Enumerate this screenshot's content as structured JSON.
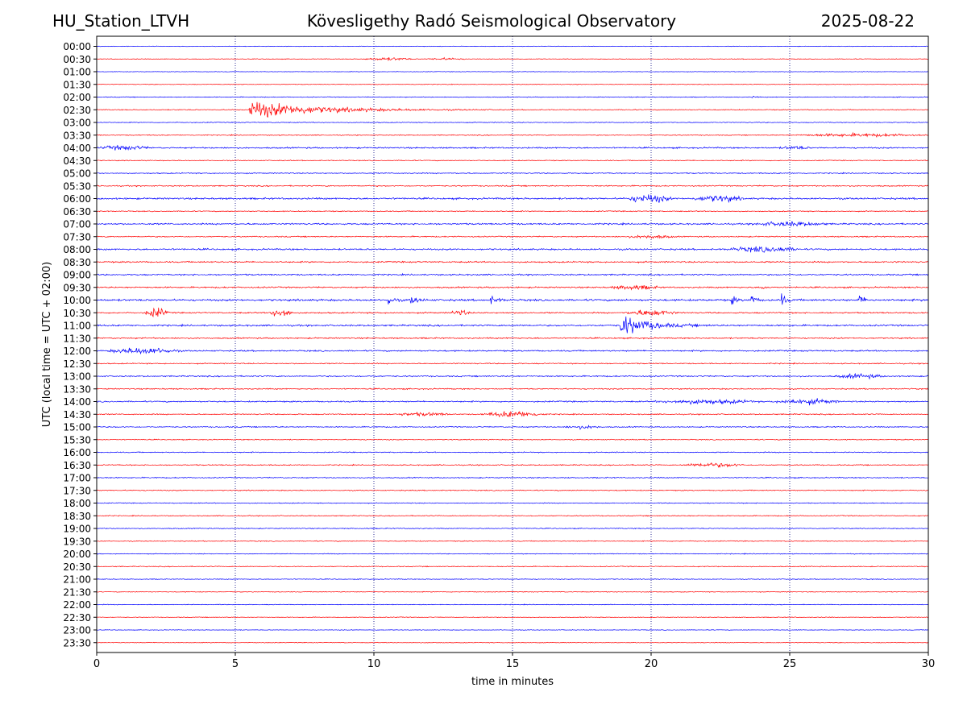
{
  "header": {
    "station": "HU_Station_LTVH",
    "observatory": "Kövesligethy Radó Seismological Observatory",
    "date": "2025-08-22"
  },
  "chart_data": {
    "type": "line",
    "title": "Kövesligethy Radó Seismological Observatory",
    "xlabel": "time in minutes",
    "ylabel": "UTC (local time = UTC + 02:00)",
    "xlim": [
      0,
      30
    ],
    "x_ticks": [
      "0",
      "5",
      "10",
      "15",
      "20",
      "25",
      "30"
    ],
    "grid": "vertical dotted lines every 5 minutes",
    "colors": {
      "even_rows": "#0000ff",
      "odd_rows": "#ff0000",
      "grid": "#000080"
    },
    "rows": [
      "00:00",
      "00:30",
      "01:00",
      "01:30",
      "02:00",
      "02:30",
      "03:00",
      "03:30",
      "04:00",
      "04:30",
      "05:00",
      "05:30",
      "06:00",
      "06:30",
      "07:00",
      "07:30",
      "08:00",
      "08:30",
      "09:00",
      "09:30",
      "10:00",
      "10:30",
      "11:00",
      "11:30",
      "12:00",
      "12:30",
      "13:00",
      "13:30",
      "14:00",
      "14:30",
      "15:00",
      "15:30",
      "16:00",
      "16:30",
      "17:00",
      "17:30",
      "18:00",
      "18:30",
      "19:00",
      "19:30",
      "20:00",
      "20:30",
      "21:00",
      "21:30",
      "22:00",
      "22:30",
      "23:00",
      "23:30"
    ],
    "row_noise": [
      0.6,
      0.7,
      0.6,
      0.7,
      0.9,
      1.0,
      0.9,
      1.0,
      1.6,
      1.0,
      1.1,
      1.3,
      1.9,
      1.1,
      1.7,
      1.3,
      1.8,
      1.6,
      1.6,
      1.6,
      2.2,
      1.5,
      1.8,
      1.5,
      1.6,
      1.2,
      1.4,
      1.3,
      1.5,
      1.2,
      1.2,
      1.0,
      1.1,
      1.1,
      1.2,
      1.1,
      1.0,
      1.0,
      1.0,
      1.0,
      0.9,
      1.0,
      0.9,
      0.8,
      0.8,
      0.8,
      0.7,
      0.7
    ],
    "events": [
      {
        "row": "00:30",
        "start_min": 9.5,
        "duration_min": 2.0,
        "amplitude": 3,
        "decay": "spindle"
      },
      {
        "row": "00:30",
        "start_min": 11.8,
        "duration_min": 1.6,
        "amplitude": 2,
        "decay": "spindle"
      },
      {
        "row": "02:00",
        "start_min": 23.6,
        "duration_min": 0.4,
        "amplitude": 4,
        "decay": "exp"
      },
      {
        "row": "02:30",
        "start_min": 5.5,
        "duration_min": 9.0,
        "amplitude": 20,
        "decay": "exp"
      },
      {
        "row": "03:30",
        "start_min": 25.0,
        "duration_min": 5.0,
        "amplitude": 3,
        "decay": "spindle"
      },
      {
        "row": "04:00",
        "start_min": 0.0,
        "duration_min": 2.0,
        "amplitude": 4,
        "decay": "spindle"
      },
      {
        "row": "04:00",
        "start_min": 24.6,
        "duration_min": 1.2,
        "amplitude": 3,
        "decay": "spindle"
      },
      {
        "row": "06:00",
        "start_min": 19.0,
        "duration_min": 1.8,
        "amplitude": 8,
        "decay": "spindle"
      },
      {
        "row": "06:00",
        "start_min": 21.4,
        "duration_min": 2.0,
        "amplitude": 6,
        "decay": "spindle"
      },
      {
        "row": "07:00",
        "start_min": 23.5,
        "duration_min": 3.0,
        "amplitude": 4,
        "decay": "spindle"
      },
      {
        "row": "07:30",
        "start_min": 19.0,
        "duration_min": 2.0,
        "amplitude": 3,
        "decay": "spindle"
      },
      {
        "row": "08:00",
        "start_min": 22.6,
        "duration_min": 3.0,
        "amplitude": 5,
        "decay": "spindle"
      },
      {
        "row": "09:30",
        "start_min": 18.4,
        "duration_min": 2.0,
        "amplitude": 4,
        "decay": "spindle"
      },
      {
        "row": "09:30",
        "start_min": 24.0,
        "duration_min": 0.4,
        "amplitude": 6,
        "decay": "exp"
      },
      {
        "row": "10:00",
        "start_min": 10.5,
        "duration_min": 0.6,
        "amplitude": 14,
        "decay": "exp"
      },
      {
        "row": "10:00",
        "start_min": 11.3,
        "duration_min": 0.8,
        "amplitude": 12,
        "decay": "exp"
      },
      {
        "row": "10:00",
        "start_min": 14.2,
        "duration_min": 0.8,
        "amplitude": 10,
        "decay": "exp"
      },
      {
        "row": "10:00",
        "start_min": 22.9,
        "duration_min": 0.5,
        "amplitude": 12,
        "decay": "exp"
      },
      {
        "row": "10:00",
        "start_min": 23.6,
        "duration_min": 0.5,
        "amplitude": 14,
        "decay": "exp"
      },
      {
        "row": "10:00",
        "start_min": 24.7,
        "duration_min": 0.5,
        "amplitude": 16,
        "decay": "exp"
      },
      {
        "row": "10:00",
        "start_min": 27.5,
        "duration_min": 0.5,
        "amplitude": 18,
        "decay": "exp"
      },
      {
        "row": "10:30",
        "start_min": 1.7,
        "duration_min": 0.9,
        "amplitude": 10,
        "decay": "spindle"
      },
      {
        "row": "10:30",
        "start_min": 6.2,
        "duration_min": 0.9,
        "amplitude": 10,
        "decay": "spindle"
      },
      {
        "row": "10:30",
        "start_min": 12.7,
        "duration_min": 0.8,
        "amplitude": 5,
        "decay": "spindle"
      },
      {
        "row": "10:30",
        "start_min": 19.0,
        "duration_min": 2.0,
        "amplitude": 6,
        "decay": "spindle"
      },
      {
        "row": "11:00",
        "start_min": 18.9,
        "duration_min": 3.5,
        "amplitude": 24,
        "decay": "exp"
      },
      {
        "row": "12:00",
        "start_min": 0.3,
        "duration_min": 2.8,
        "amplitude": 6,
        "decay": "spindle"
      },
      {
        "row": "13:00",
        "start_min": 26.5,
        "duration_min": 2.0,
        "amplitude": 4,
        "decay": "spindle"
      },
      {
        "row": "14:00",
        "start_min": 20.0,
        "duration_min": 4.0,
        "amplitude": 4,
        "decay": "spindle"
      },
      {
        "row": "14:00",
        "start_min": 24.3,
        "duration_min": 2.6,
        "amplitude": 5,
        "decay": "spindle"
      },
      {
        "row": "14:30",
        "start_min": 10.5,
        "duration_min": 2.5,
        "amplitude": 3,
        "decay": "spindle"
      },
      {
        "row": "14:30",
        "start_min": 13.8,
        "duration_min": 2.5,
        "amplitude": 6,
        "decay": "spindle"
      },
      {
        "row": "15:00",
        "start_min": 16.8,
        "duration_min": 1.5,
        "amplitude": 3,
        "decay": "spindle"
      },
      {
        "row": "16:30",
        "start_min": 21.0,
        "duration_min": 2.5,
        "amplitude": 4,
        "decay": "spindle"
      }
    ]
  }
}
